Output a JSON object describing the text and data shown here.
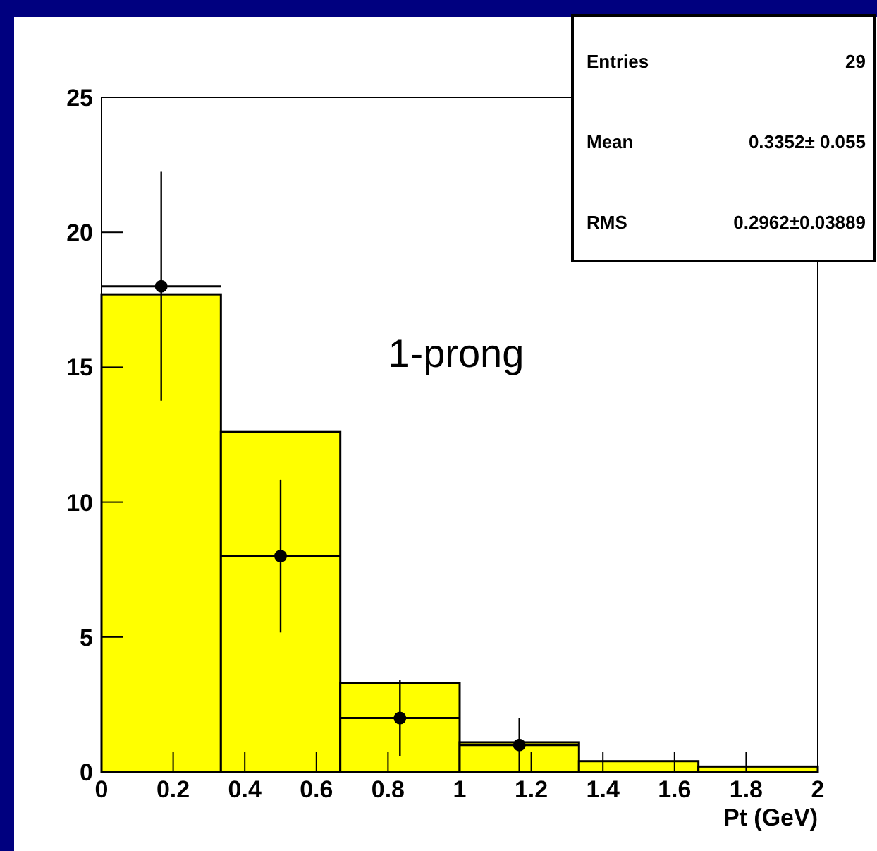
{
  "chart_data": {
    "type": "histogram",
    "xlabel": "Pt (GeV)",
    "xlim": [
      0,
      2
    ],
    "xticks": [
      0,
      0.2,
      0.4,
      0.6,
      0.8,
      1,
      1.2,
      1.4,
      1.6,
      1.8,
      2
    ],
    "ylim": [
      0,
      25
    ],
    "yticks": [
      0,
      5,
      10,
      15,
      20,
      25
    ],
    "marker": "circle",
    "series": [
      {
        "color": "#ffff00",
        "bins": [
          0,
          0.3333,
          0.6667,
          1,
          1.3333,
          1.6667,
          2
        ],
        "values": [
          17.7,
          12.6,
          3.3,
          1.1,
          0.4,
          0.2
        ]
      },
      {
        "type": "scatter",
        "color": "#000000",
        "x": [
          0.1667,
          0.5,
          0.8333,
          1.1667
        ],
        "values": [
          18,
          8,
          2,
          1
        ],
        "errors": [
          4.24,
          2.83,
          1.41,
          1
        ],
        "xerrors": [
          0.1667,
          0.1667,
          0.1667,
          0.1667
        ]
      }
    ],
    "annotations": [
      "1-prong",
      "Entries",
      "29",
      "Mean",
      "0.3352± 0.055",
      "RMS",
      "0.2962±0.03889"
    ]
  }
}
